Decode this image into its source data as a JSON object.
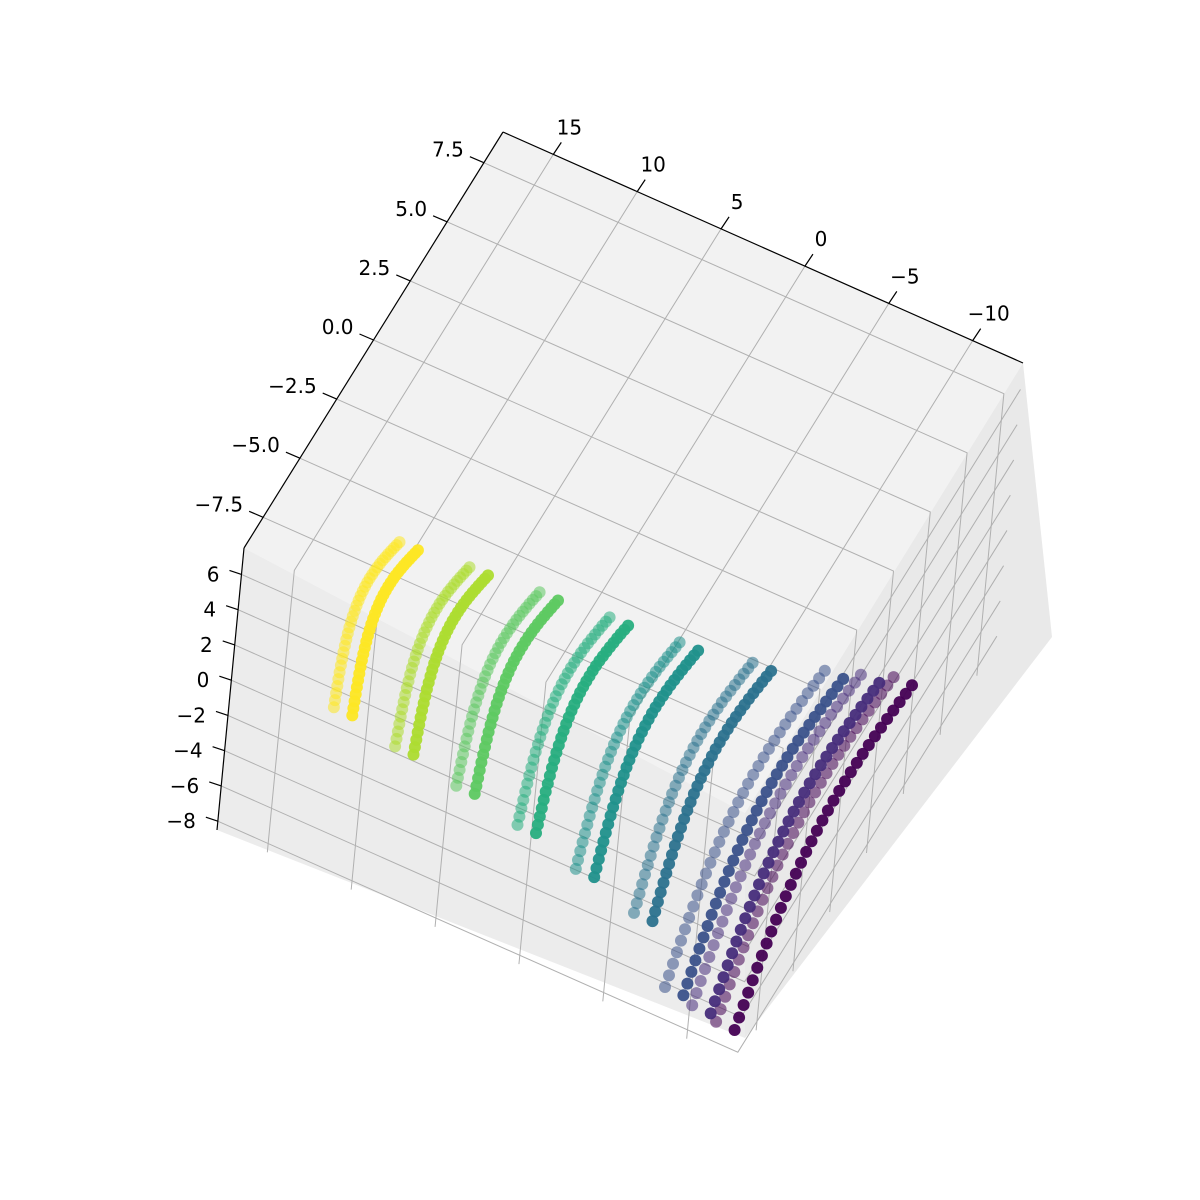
{
  "chart_data": {
    "type": "scatter",
    "subtype": "3d-scatter",
    "title": "",
    "xlabel": "",
    "ylabel": "",
    "zlabel": "",
    "grid": true,
    "colormap": "viridis",
    "axes": {
      "x": {
        "ticks": [
          15,
          10,
          5,
          0,
          -5,
          -10
        ],
        "tick_labels": [
          "15",
          "10",
          "5",
          "0",
          "−5",
          "−10"
        ],
        "range": [
          -13,
          18
        ]
      },
      "y": {
        "ticks": [
          7.5,
          5.0,
          2.5,
          0.0,
          -2.5,
          -5.0,
          -7.5
        ],
        "tick_labels": [
          "7.5",
          "5.0",
          "2.5",
          "0.0",
          "−2.5",
          "−5.0",
          "−7.5"
        ],
        "range": [
          -8.8,
          8.8
        ]
      },
      "z": {
        "ticks": [
          6,
          4,
          2,
          0,
          -2,
          -4,
          -6,
          -8
        ],
        "tick_labels": [
          "6",
          "4",
          "2",
          "0",
          "−2",
          "−4",
          "−6",
          "−8"
        ],
        "range": [
          -8.5,
          7.5
        ]
      }
    },
    "series": [
      {
        "strand": 1,
        "x": -12.0,
        "y_range": [
          -8.6,
          3.0
        ],
        "z_offset": 0.0,
        "color": "#440154"
      },
      {
        "strand": 2,
        "x": -10.4,
        "y_range": [
          -8.4,
          2.6
        ],
        "z_offset": 0.0,
        "color": "#472d7b"
      },
      {
        "strand": 3,
        "x": -8.6,
        "y_range": [
          -8.2,
          2.2
        ],
        "z_offset": 0.0,
        "color": "#3b528b"
      },
      {
        "strand": 4,
        "x": -5.0,
        "y_range": [
          -6.2,
          1.4
        ],
        "z_offset": 0.0,
        "color": "#2c728e"
      },
      {
        "strand": 5,
        "x": -1.0,
        "y_range": [
          -5.6,
          1.0
        ],
        "z_offset": 0.0,
        "color": "#21918c"
      },
      {
        "strand": 6,
        "x": 3.0,
        "y_range": [
          -5.0,
          0.8
        ],
        "z_offset": 0.0,
        "color": "#28ae80"
      },
      {
        "strand": 7,
        "x": 7.0,
        "y_range": [
          -4.6,
          0.6
        ],
        "z_offset": 0.0,
        "color": "#5ec962"
      },
      {
        "strand": 8,
        "x": 11.0,
        "y_range": [
          -4.2,
          0.4
        ],
        "z_offset": 0.0,
        "color": "#addc30"
      },
      {
        "strand": 9,
        "x": 15.0,
        "y_range": [
          -3.8,
          0.2
        ],
        "z_offset": 0.0,
        "color": "#fde725"
      }
    ]
  }
}
